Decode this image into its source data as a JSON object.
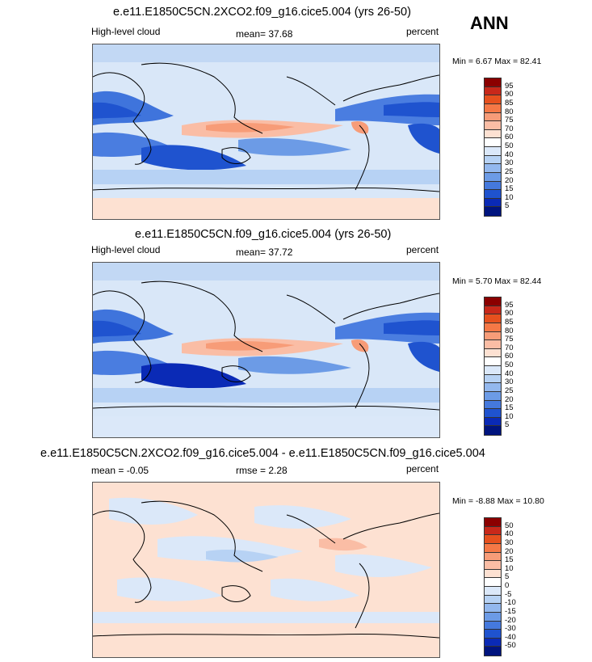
{
  "season": "ANN",
  "panels": [
    {
      "title": "e.e11.E1850C5CN.2XCO2.f09_g16.cice5.004 (yrs 26-50)",
      "left_label": "High-level cloud",
      "center_label": "mean=  37.68",
      "right_label": "percent",
      "minmax": "Min =   6.67 Max =  82.41",
      "colorbar_labels": [
        "95",
        "90",
        "85",
        "80",
        "75",
        "70",
        "60",
        "50",
        "40",
        "30",
        "25",
        "20",
        "15",
        "10",
        "5"
      ],
      "colorbar_colors": [
        "#8b0000",
        "#c8281a",
        "#e6501e",
        "#f57846",
        "#f79c78",
        "#fabda5",
        "#fde1d2",
        "#ffffff",
        "#dbe8f9",
        "#b7d2f4",
        "#93b8ee",
        "#6c9be6",
        "#4579dd",
        "#1f53cf",
        "#0a2ab6",
        "#00147e"
      ]
    },
    {
      "title": "e.e11.E1850C5CN.f09_g16.cice5.004 (yrs 26-50)",
      "left_label": "High-level cloud",
      "center_label": "mean=  37.72",
      "right_label": "percent",
      "minmax": "Min =   5.70 Max =  82.44",
      "colorbar_labels": [
        "95",
        "90",
        "85",
        "80",
        "75",
        "70",
        "60",
        "50",
        "40",
        "30",
        "25",
        "20",
        "15",
        "10",
        "5"
      ],
      "colorbar_colors": [
        "#8b0000",
        "#c8281a",
        "#e6501e",
        "#f57846",
        "#f79c78",
        "#fabda5",
        "#fde1d2",
        "#ffffff",
        "#dbe8f9",
        "#b7d2f4",
        "#93b8ee",
        "#6c9be6",
        "#4579dd",
        "#1f53cf",
        "#0a2ab6",
        "#00147e"
      ]
    },
    {
      "title": "e.e11.E1850C5CN.2XCO2.f09_g16.cice5.004 - e.e11.E1850C5CN.f09_g16.cice5.004",
      "left_label": "mean =  -0.05",
      "center_label": "rmse =   2.28",
      "right_label": "percent",
      "minmax": "Min =  -8.88 Max =  10.80",
      "colorbar_labels": [
        "50",
        "40",
        "30",
        "20",
        "15",
        "10",
        "5",
        "0",
        "-5",
        "-10",
        "-15",
        "-20",
        "-30",
        "-40",
        "-50"
      ],
      "colorbar_colors": [
        "#8b0000",
        "#c8281a",
        "#e6501e",
        "#f57846",
        "#f79c78",
        "#fabda5",
        "#fde1d2",
        "#ffffff",
        "#dbe8f9",
        "#b7d2f4",
        "#93b8ee",
        "#6c9be6",
        "#4579dd",
        "#1f53cf",
        "#0a2ab6",
        "#00147e"
      ]
    }
  ]
}
